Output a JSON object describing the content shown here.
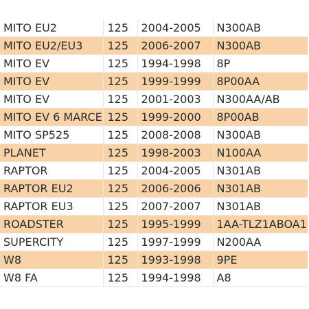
{
  "colors": {
    "row_shaded": "#f9d3a8",
    "row_plain": "#ffffff",
    "text": "#2b2b2b"
  },
  "table": {
    "rows": [
      {
        "model": "MITO EU2",
        "cc": "125",
        "years": "2004-2005",
        "code": "N300AB",
        "shaded": false
      },
      {
        "model": "MITO EU2/EU3",
        "cc": "125",
        "years": "2006-2007",
        "code": "N300AB",
        "shaded": true
      },
      {
        "model": "MITO EV",
        "cc": "125",
        "years": "1994-1998",
        "code": "8P",
        "shaded": false
      },
      {
        "model": "MITO EV",
        "cc": "125",
        "years": "1999-1999",
        "code": "8P00AA",
        "shaded": true
      },
      {
        "model": "MITO EV",
        "cc": "125",
        "years": "2001-2003",
        "code": "N300AA/AB",
        "shaded": false
      },
      {
        "model": "MITO EV 6 MARCE",
        "cc": "125",
        "years": "1999-2000",
        "code": "8P00AB",
        "shaded": true
      },
      {
        "model": "MITO SP525",
        "cc": "125",
        "years": "2008-2008",
        "code": "N300AB",
        "shaded": false
      },
      {
        "model": "PLANET",
        "cc": "125",
        "years": "1998-2003",
        "code": "N100AA",
        "shaded": true
      },
      {
        "model": "RAPTOR",
        "cc": "125",
        "years": "2004-2005",
        "code": "N301AB",
        "shaded": false
      },
      {
        "model": "RAPTOR EU2",
        "cc": "125",
        "years": "2006-2006",
        "code": "N301AB",
        "shaded": true
      },
      {
        "model": "RAPTOR EU3",
        "cc": "125",
        "years": "2007-2007",
        "code": "N301AB",
        "shaded": false
      },
      {
        "model": "ROADSTER",
        "cc": "125",
        "years": "1995-1999",
        "code": "1AA-TLZ1ABOA1",
        "shaded": true
      },
      {
        "model": "SUPERCITY",
        "cc": "125",
        "years": "1997-1999",
        "code": "N200AA",
        "shaded": false
      },
      {
        "model": "W8",
        "cc": "125",
        "years": "1993-1998",
        "code": "9PE",
        "shaded": true
      },
      {
        "model": "W8 FA",
        "cc": "125",
        "years": "1994-1998",
        "code": "A8",
        "shaded": false
      }
    ]
  }
}
